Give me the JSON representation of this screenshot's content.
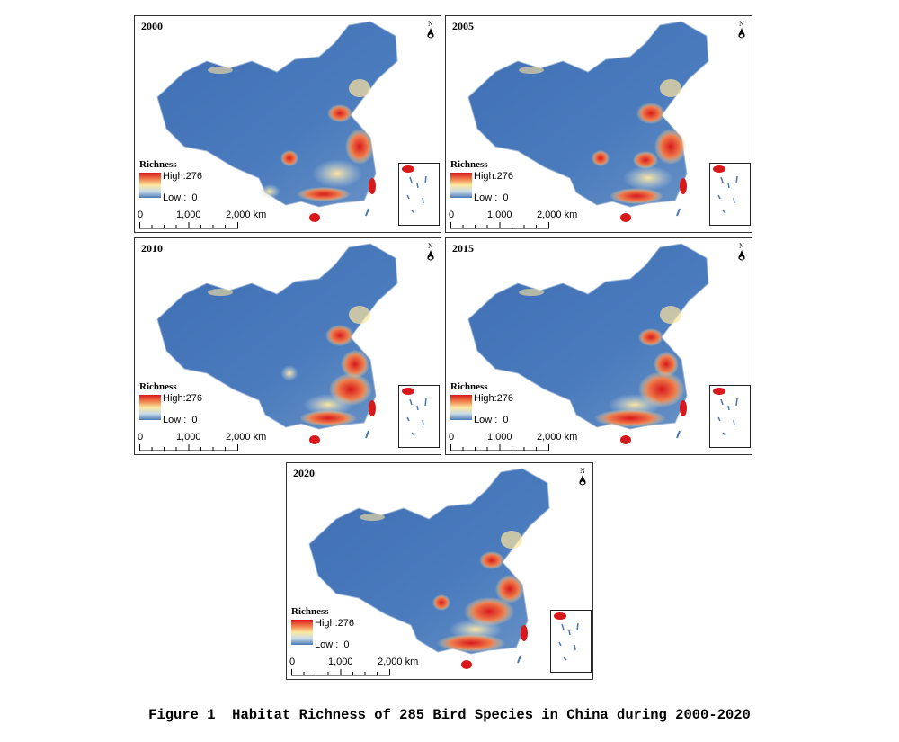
{
  "figure": {
    "caption": "Figure 1  Habitat Richness of 285 Bird Species in China during 2000-2020"
  },
  "legend": {
    "title": "Richness",
    "high_label": "High:276",
    "low_label": "Low :  0",
    "high_value": 276,
    "low_value": 0,
    "color_high": "#d7191c",
    "color_mid": "#fee8a0",
    "color_low": "#4a78b5"
  },
  "scale_bar": {
    "label_0": "0",
    "label_1": "1,000",
    "label_2": "2,000 km"
  },
  "panels": [
    {
      "year": "2000"
    },
    {
      "year": "2005"
    },
    {
      "year": "2010"
    },
    {
      "year": "2015"
    },
    {
      "year": "2020"
    }
  ]
}
